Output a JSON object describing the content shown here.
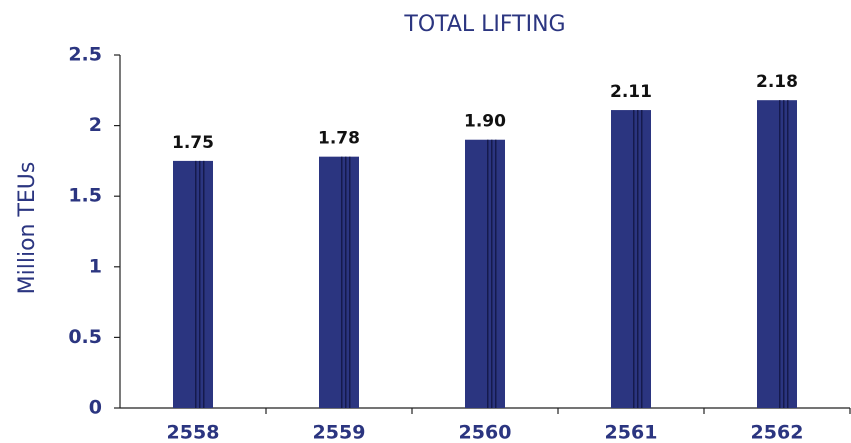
{
  "chart_data": {
    "type": "bar",
    "title": "TOTAL LIFTING",
    "y_label": "Million TEUs",
    "categories": [
      "2558",
      "2559",
      "2560",
      "2561",
      "2562"
    ],
    "values": [
      1.75,
      1.78,
      1.9,
      2.11,
      2.18
    ],
    "value_labels": [
      "1.75",
      "1.78",
      "1.90",
      "2.11",
      "2.18"
    ],
    "color": "#2b3580",
    "ylim": [
      0,
      2.5
    ],
    "yticks": [
      0,
      0.5,
      1,
      1.5,
      2,
      2.5
    ],
    "grid": false
  }
}
